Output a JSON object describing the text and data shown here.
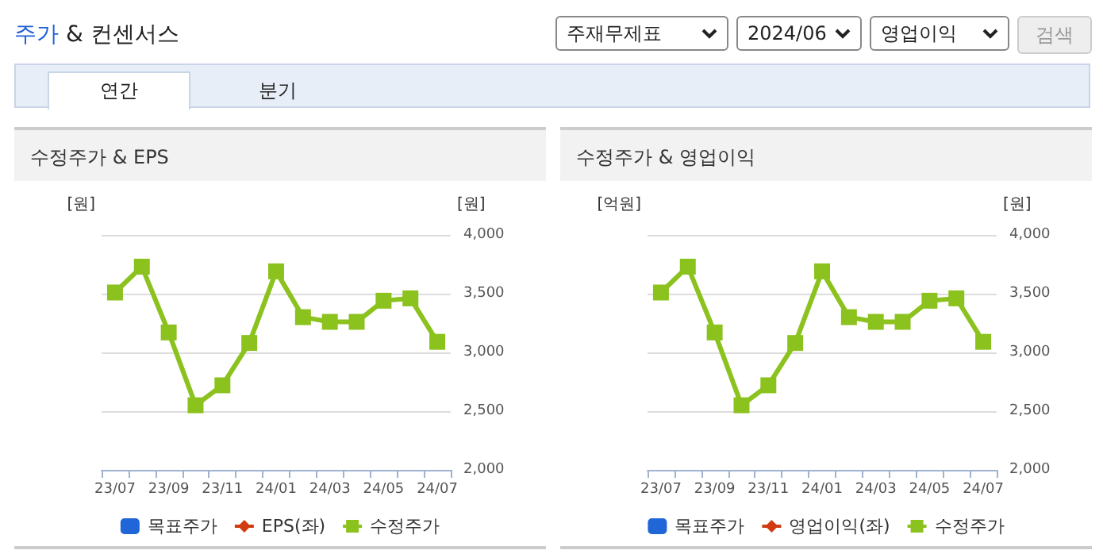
{
  "chart_data": [
    {
      "type": "line",
      "title": "수정주가 & EPS",
      "ylabel": "[원]",
      "y2label": "[원]",
      "annotations": [
        "주가 & 컨센서스",
        "주재무제표",
        "2024/06",
        "영업이익",
        "검색",
        "연간",
        "분기"
      ],
      "categories": [
        "23/07",
        null,
        "23/09",
        null,
        "23/11",
        null,
        "24/01",
        null,
        "24/03",
        null,
        "24/05",
        null,
        "24/07"
      ],
      "series": [
        {
          "name": "목표주가",
          "type": "bar",
          "color": "#2166d8",
          "values": [
            null,
            null,
            null,
            null,
            null,
            null,
            null,
            null,
            null,
            null,
            null,
            null,
            null
          ]
        },
        {
          "name": "EPS(좌)",
          "marker": "diamond",
          "color": "#d13b12",
          "values": [
            null,
            null,
            null,
            null,
            null,
            null,
            null,
            null,
            null,
            null,
            null,
            null,
            null
          ]
        },
        {
          "name": "수정주가",
          "marker": "square",
          "axis": "y2",
          "color": "#8cc21e",
          "values": [
            3510,
            3730,
            3170,
            2550,
            2720,
            3080,
            3690,
            3300,
            3260,
            3260,
            3440,
            3460,
            3090
          ]
        }
      ],
      "y2lim": [
        2000,
        4000
      ],
      "y2ticks": [
        {
          "value": 2000,
          "label": "2,000"
        },
        {
          "value": 2500,
          "label": "2,500"
        },
        {
          "value": 3000,
          "label": "3,000"
        },
        {
          "value": 3500,
          "label": "3,500"
        },
        {
          "value": 4000,
          "label": "4,000"
        }
      ],
      "grid": "y",
      "legend": "bottom"
    },
    {
      "type": "line",
      "title": "수정주가 & 영업이익",
      "ylabel": "[억원]",
      "y2label": "[원]",
      "categories": [
        "23/07",
        null,
        "23/09",
        null,
        "23/11",
        null,
        "24/01",
        null,
        "24/03",
        null,
        "24/05",
        null,
        "24/07"
      ],
      "series": [
        {
          "name": "목표주가",
          "type": "bar",
          "color": "#2166d8",
          "values": [
            null,
            null,
            null,
            null,
            null,
            null,
            null,
            null,
            null,
            null,
            null,
            null,
            null
          ]
        },
        {
          "name": "영업이익(좌)",
          "marker": "diamond",
          "color": "#d13b12",
          "values": [
            null,
            null,
            null,
            null,
            null,
            null,
            null,
            null,
            null,
            null,
            null,
            null,
            null
          ]
        },
        {
          "name": "수정주가",
          "marker": "square",
          "axis": "y2",
          "color": "#8cc21e",
          "values": [
            3510,
            3730,
            3170,
            2550,
            2720,
            3080,
            3690,
            3300,
            3260,
            3260,
            3440,
            3460,
            3090
          ]
        }
      ],
      "y2lim": [
        2000,
        4000
      ],
      "y2ticks": [
        {
          "value": 2000,
          "label": "2,000"
        },
        {
          "value": 2500,
          "label": "2,500"
        },
        {
          "value": 3000,
          "label": "3,000"
        },
        {
          "value": 3500,
          "label": "3,500"
        },
        {
          "value": 4000,
          "label": "4,000"
        }
      ],
      "grid": "y",
      "legend": "bottom"
    }
  ]
}
